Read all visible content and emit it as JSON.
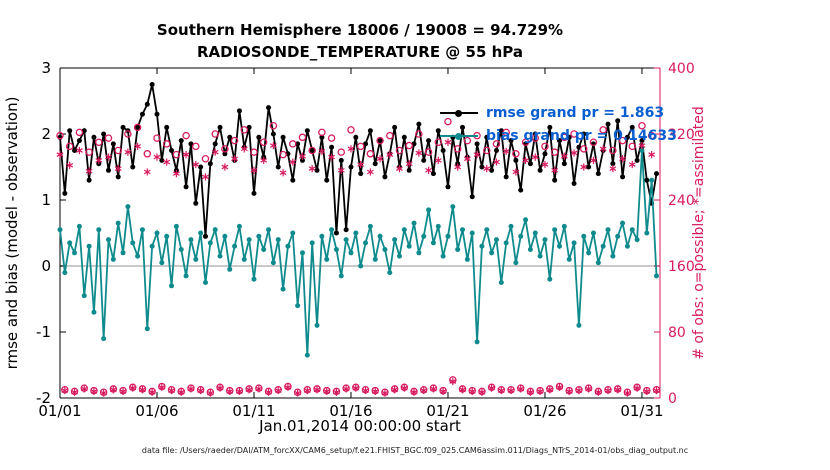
{
  "chart_data": {
    "type": "line",
    "title": "Southern Hemisphere 18006 / 19008 = 94.729%",
    "subtitle": "RADIOSONDE_TEMPERATURE @ 55 hPa",
    "xlabel": "Jan.01,2014 00:00:00 start",
    "ylabel_left": "rmse and bias (model - observation)",
    "ylabel_right": "# of obs: o=possible; *=assimilated",
    "footer": "data file: /Users/raeder/DAI/ATM_forcXX/CAM6_setup/f.e21.FHIST_BGC.f09_025.CAM6assim.011/Diags_NTrS_2014-01/obs_diag_output.nc",
    "ylim_left": [
      -2,
      3
    ],
    "yticks_left": [
      -2,
      -1,
      0,
      1,
      2,
      3
    ],
    "ylim_right": [
      0,
      400
    ],
    "yticks_right": [
      0,
      80,
      160,
      240,
      320,
      400
    ],
    "xlim_days": [
      1,
      31.93
    ],
    "xticks": [
      {
        "day": 1,
        "label": "01/01"
      },
      {
        "day": 6,
        "label": "01/06"
      },
      {
        "day": 11,
        "label": "01/11"
      },
      {
        "day": 16,
        "label": "01/16"
      },
      {
        "day": 21,
        "label": "01/21"
      },
      {
        "day": 26,
        "label": "01/26"
      },
      {
        "day": 31,
        "label": "01/31"
      }
    ],
    "x_start": 1,
    "x_step": 0.25,
    "n_points": 124,
    "zero_line": 0,
    "legend_text_color": "#0a5fd0",
    "axis_right_color": "#d81b60",
    "series": [
      {
        "name": "rmse",
        "legend": "rmse grand pr = 1.863",
        "color": "#000000",
        "axis": "left",
        "marker": "dot",
        "line": true,
        "values": [
          1.95,
          1.1,
          2.05,
          1.75,
          1.9,
          2.05,
          1.3,
          1.95,
          1.55,
          2.0,
          1.45,
          1.85,
          1.35,
          2.1,
          2.05,
          1.5,
          2.1,
          2.3,
          2.45,
          2.75,
          2.3,
          1.6,
          2.1,
          1.75,
          1.45,
          1.9,
          1.2,
          1.85,
          0.95,
          1.5,
          0.45,
          1.55,
          1.85,
          2.1,
          1.7,
          1.95,
          1.6,
          2.35,
          1.8,
          2.1,
          1.1,
          1.95,
          1.65,
          2.4,
          2.0,
          1.5,
          1.95,
          1.7,
          1.3,
          1.85,
          1.6,
          2.05,
          1.75,
          1.45,
          1.95,
          1.3,
          1.8,
          0.5,
          1.6,
          0.55,
          1.5,
          1.95,
          1.4,
          1.85,
          2.05,
          1.55,
          1.9,
          1.35,
          1.7,
          2.1,
          1.5,
          1.95,
          1.45,
          1.85,
          2.15,
          1.6,
          1.9,
          1.4,
          2.05,
          1.75,
          1.2,
          1.95,
          1.55,
          2.1,
          1.65,
          1.05,
          1.85,
          1.5,
          1.95,
          1.45,
          1.75,
          2.05,
          1.35,
          1.9,
          1.6,
          1.15,
          1.85,
          1.55,
          2.0,
          1.45,
          1.7,
          2.1,
          1.3,
          1.9,
          1.55,
          1.95,
          1.25,
          1.8,
          2.0,
          1.5,
          1.85,
          1.4,
          1.75,
          2.15,
          1.55,
          2.2,
          1.35,
          1.95,
          2.1,
          1.6,
          1.9,
          1.3,
          0.95,
          1.4
        ]
      },
      {
        "name": "bias",
        "legend": "bias grand pr = 0.14633",
        "color": "#0f8b8d",
        "axis": "left",
        "marker": "dot",
        "line": true,
        "values": [
          0.55,
          -0.1,
          0.35,
          0.2,
          0.6,
          -0.45,
          0.3,
          -0.7,
          0.55,
          -1.1,
          0.4,
          0.1,
          0.65,
          0.2,
          0.9,
          0.35,
          0.15,
          0.55,
          -0.95,
          0.3,
          0.5,
          0.05,
          0.45,
          -0.3,
          0.6,
          0.25,
          -0.15,
          0.4,
          0.1,
          0.5,
          -0.25,
          0.35,
          0.55,
          0.15,
          0.45,
          -0.05,
          0.3,
          0.6,
          0.1,
          0.4,
          -0.2,
          0.45,
          0.25,
          0.55,
          0.05,
          0.4,
          -0.35,
          0.3,
          0.5,
          -0.6,
          0.2,
          -1.35,
          0.35,
          -0.9,
          0.45,
          0.1,
          0.55,
          0.25,
          -0.15,
          0.4,
          0.2,
          0.5,
          0.0,
          0.35,
          0.6,
          0.1,
          0.45,
          0.25,
          -0.1,
          0.4,
          0.15,
          0.55,
          0.3,
          0.65,
          0.2,
          0.45,
          0.85,
          0.35,
          0.6,
          0.15,
          0.45,
          0.9,
          0.25,
          0.55,
          0.1,
          0.5,
          -1.15,
          0.3,
          0.55,
          0.2,
          0.4,
          -0.25,
          0.35,
          0.6,
          0.05,
          0.45,
          0.7,
          0.25,
          0.5,
          0.15,
          0.4,
          -0.2,
          0.55,
          0.3,
          0.6,
          0.1,
          0.35,
          -0.9,
          0.45,
          0.2,
          0.5,
          0.05,
          0.3,
          0.55,
          0.15,
          0.45,
          0.65,
          0.3,
          0.55,
          0.4,
          1.75,
          0.5,
          1.3,
          -0.15
        ]
      },
      {
        "name": "possible",
        "legend": "o=possible",
        "color": "#d81b60",
        "axis": "right",
        "marker": "open-circle",
        "line": false,
        "values": [
          318,
          10,
          305,
          8,
          322,
          12,
          298,
          9,
          310,
          7,
          315,
          11,
          300,
          9,
          320,
          13,
          328,
          11,
          296,
          8,
          315,
          14,
          308,
          10,
          295,
          8,
          318,
          12,
          305,
          10,
          290,
          7,
          320,
          13,
          302,
          9,
          312,
          9,
          325,
          11,
          298,
          12,
          310,
          8,
          330,
          10,
          295,
          14,
          308,
          7,
          316,
          10,
          300,
          11,
          322,
          9,
          315,
          8,
          298,
          12,
          325,
          13,
          305,
          10,
          296,
          9,
          312,
          7,
          318,
          11,
          300,
          13,
          306,
          8,
          320,
          10,
          298,
          12,
          310,
          9,
          335,
          22,
          302,
          11,
          312,
          9,
          318,
          8,
          300,
          13,
          308,
          10,
          322,
          10,
          296,
          12,
          310,
          8,
          315,
          9,
          305,
          11,
          298,
          14,
          316,
          9,
          320,
          10,
          302,
          12,
          310,
          8,
          325,
          10,
          300,
          11,
          312,
          7,
          305,
          13,
          330,
          9,
          318,
          10
        ]
      },
      {
        "name": "assimilated",
        "legend": "*=assimilated",
        "color": "#d81b60",
        "axis": "right",
        "marker": "asterisk",
        "line": false,
        "values": [
          295,
          9,
          282,
          7,
          300,
          11,
          275,
          8,
          288,
          6,
          292,
          10,
          278,
          8,
          298,
          12,
          305,
          10,
          274,
          7,
          292,
          13,
          286,
          9,
          272,
          7,
          295,
          11,
          283,
          9,
          268,
          6,
          298,
          12,
          280,
          8,
          290,
          8,
          302,
          10,
          276,
          11,
          288,
          7,
          306,
          9,
          273,
          13,
          286,
          6,
          293,
          9,
          278,
          10,
          299,
          8,
          292,
          7,
          276,
          11,
          302,
          12,
          283,
          9,
          274,
          8,
          290,
          6,
          295,
          10,
          278,
          12,
          284,
          7,
          297,
          9,
          276,
          11,
          288,
          8,
          310,
          20,
          280,
          10,
          290,
          8,
          295,
          7,
          278,
          12,
          286,
          9,
          299,
          9,
          274,
          11,
          288,
          7,
          292,
          8,
          283,
          10,
          276,
          13,
          293,
          8,
          297,
          9,
          280,
          11,
          288,
          7,
          302,
          9,
          278,
          10,
          290,
          6,
          283,
          12,
          306,
          8,
          295,
          9
        ]
      }
    ]
  }
}
